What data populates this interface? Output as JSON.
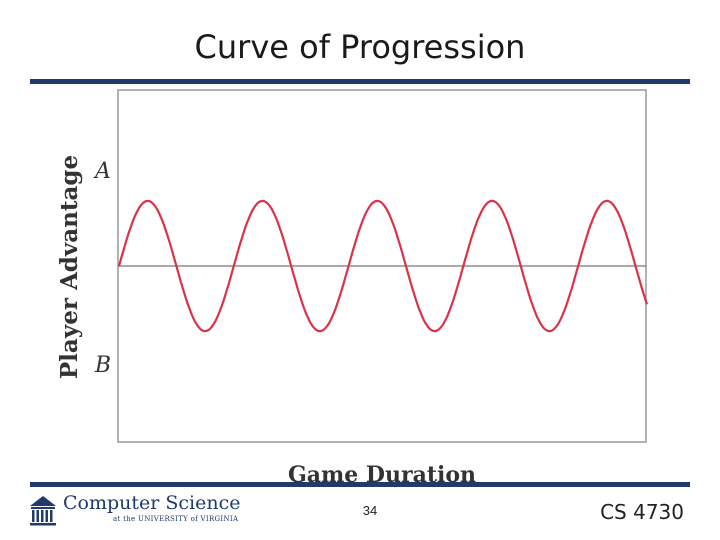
{
  "slide": {
    "title": "Curve of Progression",
    "page_number": "34",
    "course": "CS 4730"
  },
  "logo": {
    "title": "Computer Science",
    "subtitle": "at the UNIVERSITY of VIRGINIA",
    "icon": "rotunda-icon"
  },
  "colors": {
    "accent_rule": "#1f3a6b",
    "curve": "#d9334a",
    "baseline": "#777777",
    "frame": "#999999"
  },
  "chart_data": {
    "type": "line",
    "title": "",
    "xlabel": "Game Duration",
    "ylabel": "Player Advantage",
    "y_top_label": "A",
    "y_bottom_label": "B",
    "xlim": [
      0,
      5
    ],
    "ylim": [
      -1,
      1
    ],
    "baseline": 0,
    "grid": false,
    "series": [
      {
        "color": "#d9334a",
        "function": "sine",
        "amplitude": 0.37,
        "cycles": 4.6,
        "x_start": 0,
        "x_end": 5
      }
    ]
  }
}
